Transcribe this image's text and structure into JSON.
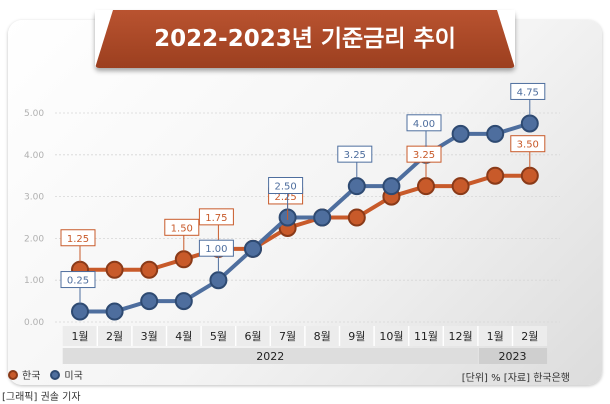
{
  "title": "2022-2023년 기준금리 추이",
  "unit_note": "[단위] %  [자료] 한국은행",
  "credit": "[그래픽] 권솔 기자",
  "colors": {
    "korea": "#c85a2a",
    "usa": "#4e6e9e",
    "title_bg": "#a8462a"
  },
  "legend": [
    {
      "name": "한국",
      "color": "#c85a2a"
    },
    {
      "name": "미국",
      "color": "#4e6e9e"
    }
  ],
  "chart_data": {
    "type": "line",
    "title": "2022-2023년 기준금리 추이",
    "ylim": [
      0,
      5
    ],
    "y_ticks": [
      "0.00",
      "1.00",
      "2.00",
      "3.00",
      "4.00",
      "5.00"
    ],
    "categories": [
      "1월",
      "2월",
      "3월",
      "4월",
      "5월",
      "6월",
      "7월",
      "8월",
      "9월",
      "10월",
      "11월",
      "12월",
      "1월",
      "2월"
    ],
    "year_groups": [
      {
        "label": "2022",
        "count": 12
      },
      {
        "label": "2023",
        "count": 2
      }
    ],
    "series": [
      {
        "name": "한국",
        "values": [
          1.25,
          1.25,
          1.25,
          1.5,
          1.75,
          1.75,
          2.25,
          2.5,
          2.5,
          3.0,
          3.25,
          3.25,
          3.5,
          3.5
        ],
        "labels": [
          {
            "index": 0,
            "text": "1.25"
          },
          {
            "index": 3,
            "text": "1.50"
          },
          {
            "index": 4,
            "text": "1.75"
          },
          {
            "index": 6,
            "text": "2.25"
          },
          {
            "index": 10,
            "text": "3.25"
          },
          {
            "index": 13,
            "text": "3.50"
          }
        ]
      },
      {
        "name": "미국",
        "values": [
          0.25,
          0.25,
          0.5,
          0.5,
          1.0,
          1.75,
          2.5,
          2.5,
          3.25,
          3.25,
          4.0,
          4.5,
          4.5,
          4.75
        ],
        "labels": [
          {
            "index": 0,
            "text": "0.25"
          },
          {
            "index": 4,
            "text": "1.00"
          },
          {
            "index": 6,
            "text": "2.50"
          },
          {
            "index": 8,
            "text": "3.25"
          },
          {
            "index": 10,
            "text": "4.00"
          },
          {
            "index": 13,
            "text": "4.75"
          }
        ]
      }
    ]
  }
}
